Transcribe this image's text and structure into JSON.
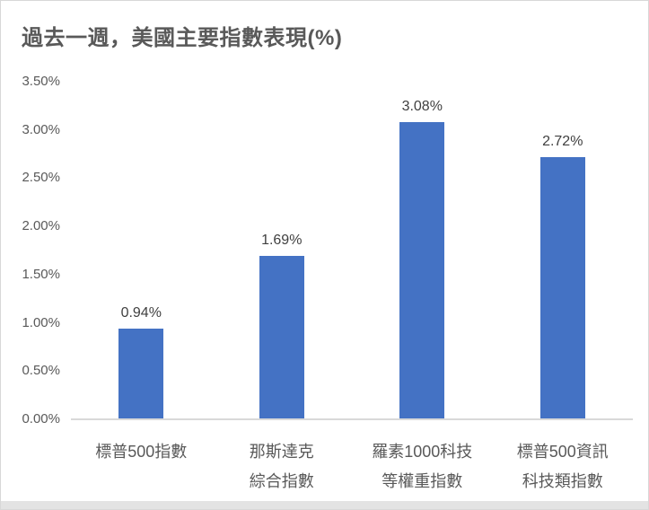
{
  "chart_data": {
    "type": "bar",
    "title": "過去一週，美國主要指數表現(%)",
    "categories": [
      [
        "標普500指數"
      ],
      [
        "那斯達克",
        "綜合指數"
      ],
      [
        "羅素1000科技",
        "等權重指數"
      ],
      [
        "標普500資訊",
        "科技類指數"
      ]
    ],
    "values": [
      0.94,
      1.69,
      3.08,
      2.72
    ],
    "data_labels": [
      "0.94%",
      "1.69%",
      "3.08%",
      "2.72%"
    ],
    "yticks": [
      "3.50%",
      "3.00%",
      "2.50%",
      "2.00%",
      "1.50%",
      "1.00%",
      "0.50%",
      "0.00%"
    ],
    "ylim": [
      0,
      3.5
    ],
    "xlabel": "",
    "ylabel": "",
    "grid": false,
    "legend": "none",
    "colors": {
      "bar": "#4472C4",
      "title": "#595959",
      "axis_labels": "#595959",
      "data_labels": "#404040",
      "axis_line": "#D9D9D9",
      "card_border": "#D8D8D8",
      "bottom_strip": "#E3E3E3",
      "background": "#FFFFFF"
    }
  }
}
